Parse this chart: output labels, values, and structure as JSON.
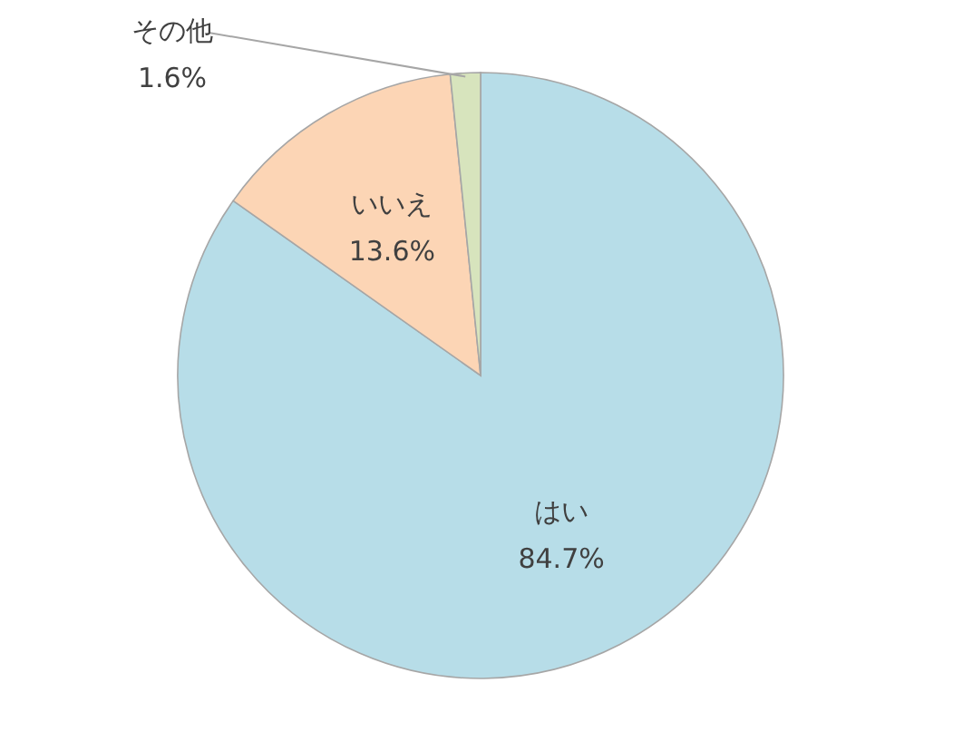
{
  "chart_data": {
    "type": "pie",
    "categories": [
      "はい",
      "いいえ",
      "その他"
    ],
    "values": [
      84.7,
      13.6,
      1.6
    ],
    "value_labels": [
      "84.7%",
      "13.6%",
      "1.6%"
    ],
    "colors": [
      "#b7dde8",
      "#fcd5b5",
      "#d7e4bd"
    ],
    "legend": false
  }
}
